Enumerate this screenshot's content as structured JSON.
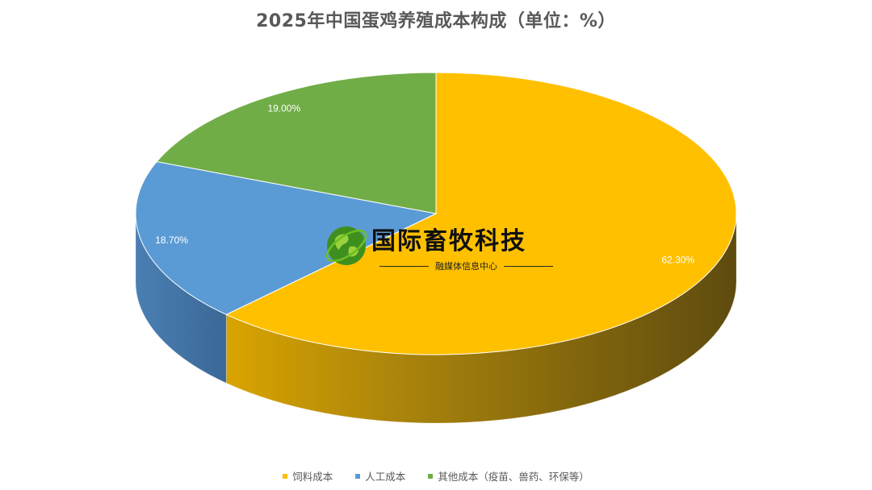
{
  "chart_data": {
    "type": "pie",
    "title": "2025年中国蛋鸡养殖成本构成（单位：%）",
    "categories": [
      "饲料成本",
      "人工成本",
      "其他成本（疫苗、兽药、环保等）"
    ],
    "values": [
      62.3,
      18.7,
      19.0
    ],
    "data_labels": [
      "62.30%",
      "18.70%",
      "19.00%"
    ],
    "colors": [
      "#FFC000",
      "#5B9BD5",
      "#70AD47"
    ],
    "legend_position": "bottom",
    "style": "3d"
  },
  "watermark": {
    "name": "国际畜牧科技",
    "subtitle": "融媒体信息中心"
  }
}
